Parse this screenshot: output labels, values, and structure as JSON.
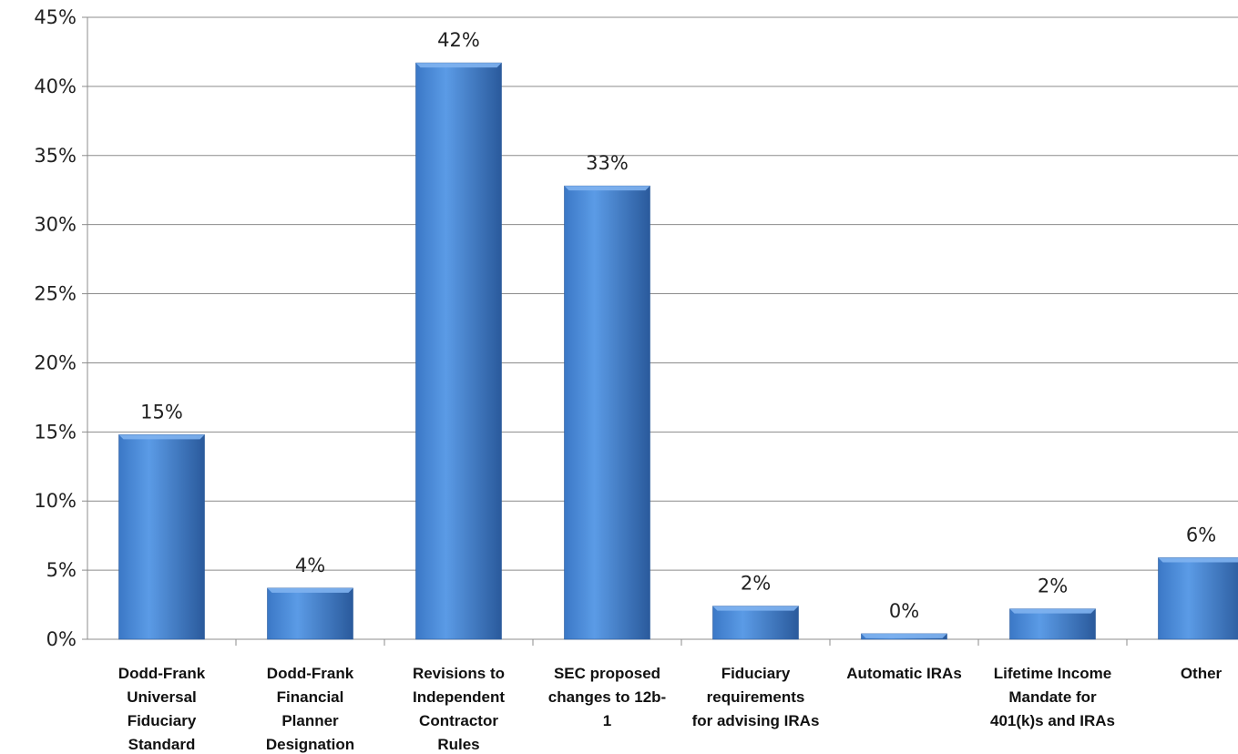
{
  "chart_data": {
    "type": "bar",
    "title": "",
    "xlabel": "",
    "ylabel": "",
    "ylim": [
      0,
      45
    ],
    "y_tick_step": 5,
    "y_tick_labels": [
      "0%",
      "5%",
      "10%",
      "15%",
      "20%",
      "25%",
      "30%",
      "35%",
      "40%",
      "45%"
    ],
    "grid": true,
    "legend": "none",
    "categories": [
      "Dodd-Frank Universal Fiduciary Standard",
      "Dodd-Frank Financial Planner Designation",
      "Revisions to Independent Contractor Rules",
      "SEC proposed changes to 12b-1",
      "Fiduciary requirements for advising IRAs",
      "Automatic IRAs",
      "Lifetime Income Mandate for 401(k)s and IRAs",
      "Other"
    ],
    "category_label_lines": [
      [
        "Dodd-Frank",
        "Universal",
        "Fiduciary",
        "Standard"
      ],
      [
        "Dodd-Frank",
        "Financial",
        "Planner",
        "Designation"
      ],
      [
        "Revisions to",
        "Independent",
        "Contractor",
        "Rules"
      ],
      [
        "SEC proposed",
        "changes to 12b-",
        "1"
      ],
      [
        "Fiduciary",
        "requirements",
        "for advising IRAs"
      ],
      [
        "Automatic IRAs"
      ],
      [
        "Lifetime Income",
        "Mandate for",
        "401(k)s and IRAs"
      ],
      [
        "Other"
      ]
    ],
    "values": [
      14.8,
      3.7,
      41.7,
      32.8,
      2.4,
      0.4,
      2.2,
      5.9
    ],
    "data_labels": [
      "15%",
      "4%",
      "42%",
      "33%",
      "2%",
      "0%",
      "2%",
      "6%"
    ],
    "colors": {
      "bar_light": "#5b9be6",
      "bar_mid": "#3b78c6",
      "bar_dark": "#2a5a9c",
      "bar_top": "#7fb3ef",
      "grid": "#8c8c8c",
      "axis": "#8c8c8c"
    }
  }
}
